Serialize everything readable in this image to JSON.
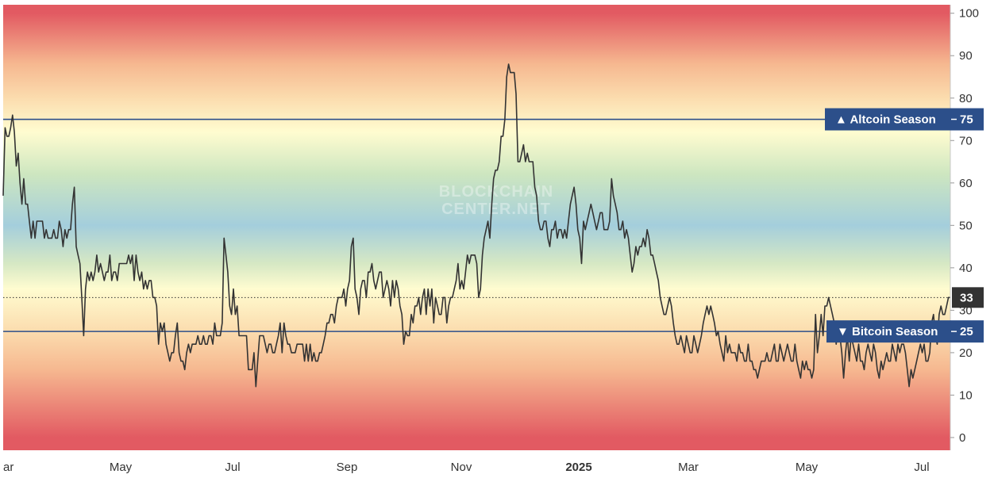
{
  "chart_data": {
    "type": "line",
    "title": "",
    "ylim": [
      -3,
      102
    ],
    "grid": false,
    "y_ticks": [
      "0",
      "10",
      "20",
      "30",
      "40",
      "50",
      "60",
      "70",
      "80",
      "90",
      "100"
    ],
    "x_tick_labels": [
      "ar",
      "May",
      "Jul",
      "Sep",
      "Nov",
      "2025",
      "Mar",
      "May",
      "Jul"
    ],
    "x_tick_bold": [
      false,
      false,
      false,
      false,
      false,
      true,
      false,
      false,
      false
    ],
    "watermark": [
      "BLOCKCHAIN",
      "CENTER.NET"
    ],
    "last_value": 33,
    "last_value_label": "33",
    "thresholds": [
      {
        "name": "Altcoin Season",
        "value": 75,
        "label": "▲ Altcoin Season",
        "value_label": "75",
        "color": "#2c4f8a"
      },
      {
        "name": "Bitcoin Season",
        "value": 25,
        "label": "▼ Bitcoin Season",
        "value_label": "25",
        "color": "#2c4f8a"
      }
    ],
    "background_gradient": [
      {
        "value": 100,
        "color": "#e25a62"
      },
      {
        "value": 88,
        "color": "#f6b890"
      },
      {
        "value": 80,
        "color": "#fbdcae"
      },
      {
        "value": 72,
        "color": "#fffcd0"
      },
      {
        "value": 62,
        "color": "#cde6c0"
      },
      {
        "value": 50,
        "color": "#a4cedc"
      },
      {
        "value": 41,
        "color": "#d6e8c4"
      },
      {
        "value": 35,
        "color": "#fffcd0"
      },
      {
        "value": 25,
        "color": "#fbdcae"
      },
      {
        "value": 16,
        "color": "#f6b890"
      },
      {
        "value": 0,
        "color": "#e25a62"
      }
    ],
    "series": [
      {
        "line_color": "#333333",
        "values": [
          57,
          73,
          71,
          71,
          73,
          76,
          72,
          64,
          67,
          60,
          55,
          61,
          55,
          55,
          51,
          47,
          51,
          47,
          51,
          51,
          51,
          51,
          47,
          49,
          47,
          47,
          47,
          49,
          47,
          47,
          51,
          49,
          45,
          49,
          47,
          49,
          49,
          55,
          59,
          45,
          43,
          41,
          33,
          24,
          35,
          39,
          37,
          39,
          37,
          39,
          43,
          39,
          41,
          39,
          37,
          39,
          39,
          43,
          37,
          39,
          39,
          37,
          41,
          41,
          41,
          41,
          41,
          43,
          41,
          43,
          37,
          43,
          39,
          37,
          39,
          35,
          37,
          35,
          37,
          37,
          33,
          33,
          31,
          22,
          27,
          25,
          27,
          22,
          20,
          18,
          20,
          20,
          24,
          27,
          20,
          18,
          18,
          16,
          20,
          22,
          20,
          22,
          22,
          22,
          24,
          22,
          22,
          24,
          22,
          22,
          24,
          24,
          22,
          27,
          24,
          24,
          24,
          27,
          47,
          43,
          39,
          31,
          29,
          35,
          29,
          31,
          24,
          24,
          24,
          24,
          24,
          16,
          16,
          16,
          20,
          12,
          18,
          24,
          24,
          24,
          22,
          20,
          22,
          22,
          20,
          20,
          22,
          24,
          27,
          20,
          27,
          24,
          22,
          22,
          20,
          20,
          20,
          22,
          22,
          22,
          22,
          18,
          22,
          18,
          22,
          18,
          20,
          18,
          18,
          20,
          20,
          22,
          24,
          27,
          27,
          29,
          29,
          27,
          31,
          33,
          33,
          33,
          35,
          31,
          35,
          37,
          45,
          47,
          35,
          33,
          29,
          35,
          37,
          37,
          33,
          39,
          39,
          41,
          37,
          35,
          37,
          39,
          39,
          33,
          35,
          37,
          35,
          31,
          37,
          33,
          37,
          35,
          31,
          29,
          22,
          25,
          24,
          24,
          29,
          27,
          31,
          31,
          33,
          29,
          33,
          35,
          29,
          35,
          31,
          35,
          27,
          33,
          31,
          29,
          29,
          33,
          33,
          27,
          31,
          33,
          33,
          35,
          37,
          41,
          35,
          37,
          35,
          39,
          43,
          41,
          43,
          43,
          43,
          41,
          33,
          35,
          43,
          47,
          49,
          51,
          47,
          55,
          61,
          63,
          63,
          65,
          71,
          71,
          75,
          85,
          88,
          86,
          86,
          86,
          81,
          65,
          65,
          67,
          69,
          65,
          67,
          65,
          65,
          65,
          59,
          57,
          51,
          49,
          49,
          51,
          51,
          47,
          45,
          49,
          49,
          51,
          47,
          49,
          49,
          47,
          49,
          47,
          51,
          55,
          57,
          59,
          55,
          49,
          47,
          41,
          51,
          49,
          51,
          53,
          55,
          53,
          51,
          49,
          51,
          53,
          53,
          49,
          49,
          49,
          51,
          61,
          57,
          55,
          53,
          49,
          49,
          51,
          47,
          49,
          47,
          43,
          39,
          41,
          45,
          43,
          45,
          45,
          47,
          45,
          49,
          47,
          43,
          43,
          41,
          39,
          37,
          33,
          31,
          29,
          29,
          31,
          33,
          31,
          27,
          24,
          22,
          22,
          24,
          22,
          20,
          24,
          22,
          20,
          20,
          24,
          22,
          20,
          22,
          24,
          27,
          29,
          31,
          29,
          31,
          29,
          27,
          24,
          25,
          22,
          20,
          18,
          24,
          20,
          22,
          20,
          20,
          20,
          18,
          22,
          20,
          20,
          18,
          18,
          22,
          18,
          18,
          16,
          16,
          14,
          16,
          18,
          18,
          18,
          20,
          18,
          18,
          20,
          22,
          18,
          18,
          22,
          20,
          18,
          20,
          22,
          20,
          18,
          18,
          22,
          18,
          16,
          14,
          18,
          16,
          18,
          16,
          16,
          14,
          16,
          29,
          20,
          24,
          29,
          24,
          31,
          31,
          33,
          31,
          29,
          27,
          22,
          25,
          24,
          20,
          14,
          20,
          24,
          18,
          24,
          22,
          20,
          18,
          22,
          18,
          18,
          16,
          20,
          22,
          20,
          18,
          22,
          20,
          16,
          14,
          18,
          16,
          18,
          20,
          18,
          18,
          22,
          20,
          18,
          22,
          20,
          22,
          22,
          20,
          16,
          12,
          16,
          14,
          16,
          18,
          20,
          22,
          20,
          22,
          18,
          18,
          20,
          27,
          29,
          24,
          22,
          29,
          31,
          29,
          29,
          31,
          33,
          33
        ]
      }
    ]
  }
}
